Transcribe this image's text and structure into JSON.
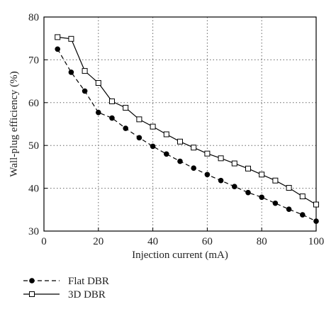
{
  "chart_data": {
    "type": "line",
    "xlabel": "Injection current (mA)",
    "ylabel": "Wall-plug efficiency (%)",
    "xlim": [
      0,
      100
    ],
    "ylim": [
      30,
      80
    ],
    "x_ticks": [
      0,
      20,
      40,
      60,
      80,
      100
    ],
    "y_ticks": [
      30,
      40,
      50,
      60,
      70,
      80
    ],
    "grid": true,
    "grid_style": "dotted",
    "legend_position": "bottom-left, below plot",
    "series": [
      {
        "name": "Flat DBR",
        "marker": "filled-circle",
        "line_style": "dashed",
        "color": "#000000",
        "x": [
          5,
          10,
          15,
          20,
          25,
          30,
          35,
          40,
          45,
          50,
          55,
          60,
          65,
          70,
          75,
          80,
          85,
          90,
          95,
          100
        ],
        "values": [
          72.5,
          67.1,
          62.7,
          57.7,
          56.4,
          54.0,
          51.8,
          49.8,
          48.0,
          46.3,
          44.7,
          43.2,
          41.8,
          40.4,
          39.0,
          37.9,
          36.5,
          35.1,
          33.8,
          32.3
        ]
      },
      {
        "name": "3D DBR",
        "marker": "open-square",
        "line_style": "solid",
        "color": "#000000",
        "x": [
          5,
          10,
          15,
          20,
          25,
          30,
          35,
          40,
          45,
          50,
          55,
          60,
          65,
          70,
          75,
          80,
          85,
          90,
          95,
          100
        ],
        "values": [
          75.3,
          74.9,
          67.4,
          64.6,
          60.3,
          58.8,
          56.1,
          54.4,
          52.6,
          50.9,
          49.5,
          48.1,
          47.0,
          45.8,
          44.6,
          43.2,
          41.8,
          40.1,
          38.1,
          36.2
        ]
      }
    ]
  }
}
